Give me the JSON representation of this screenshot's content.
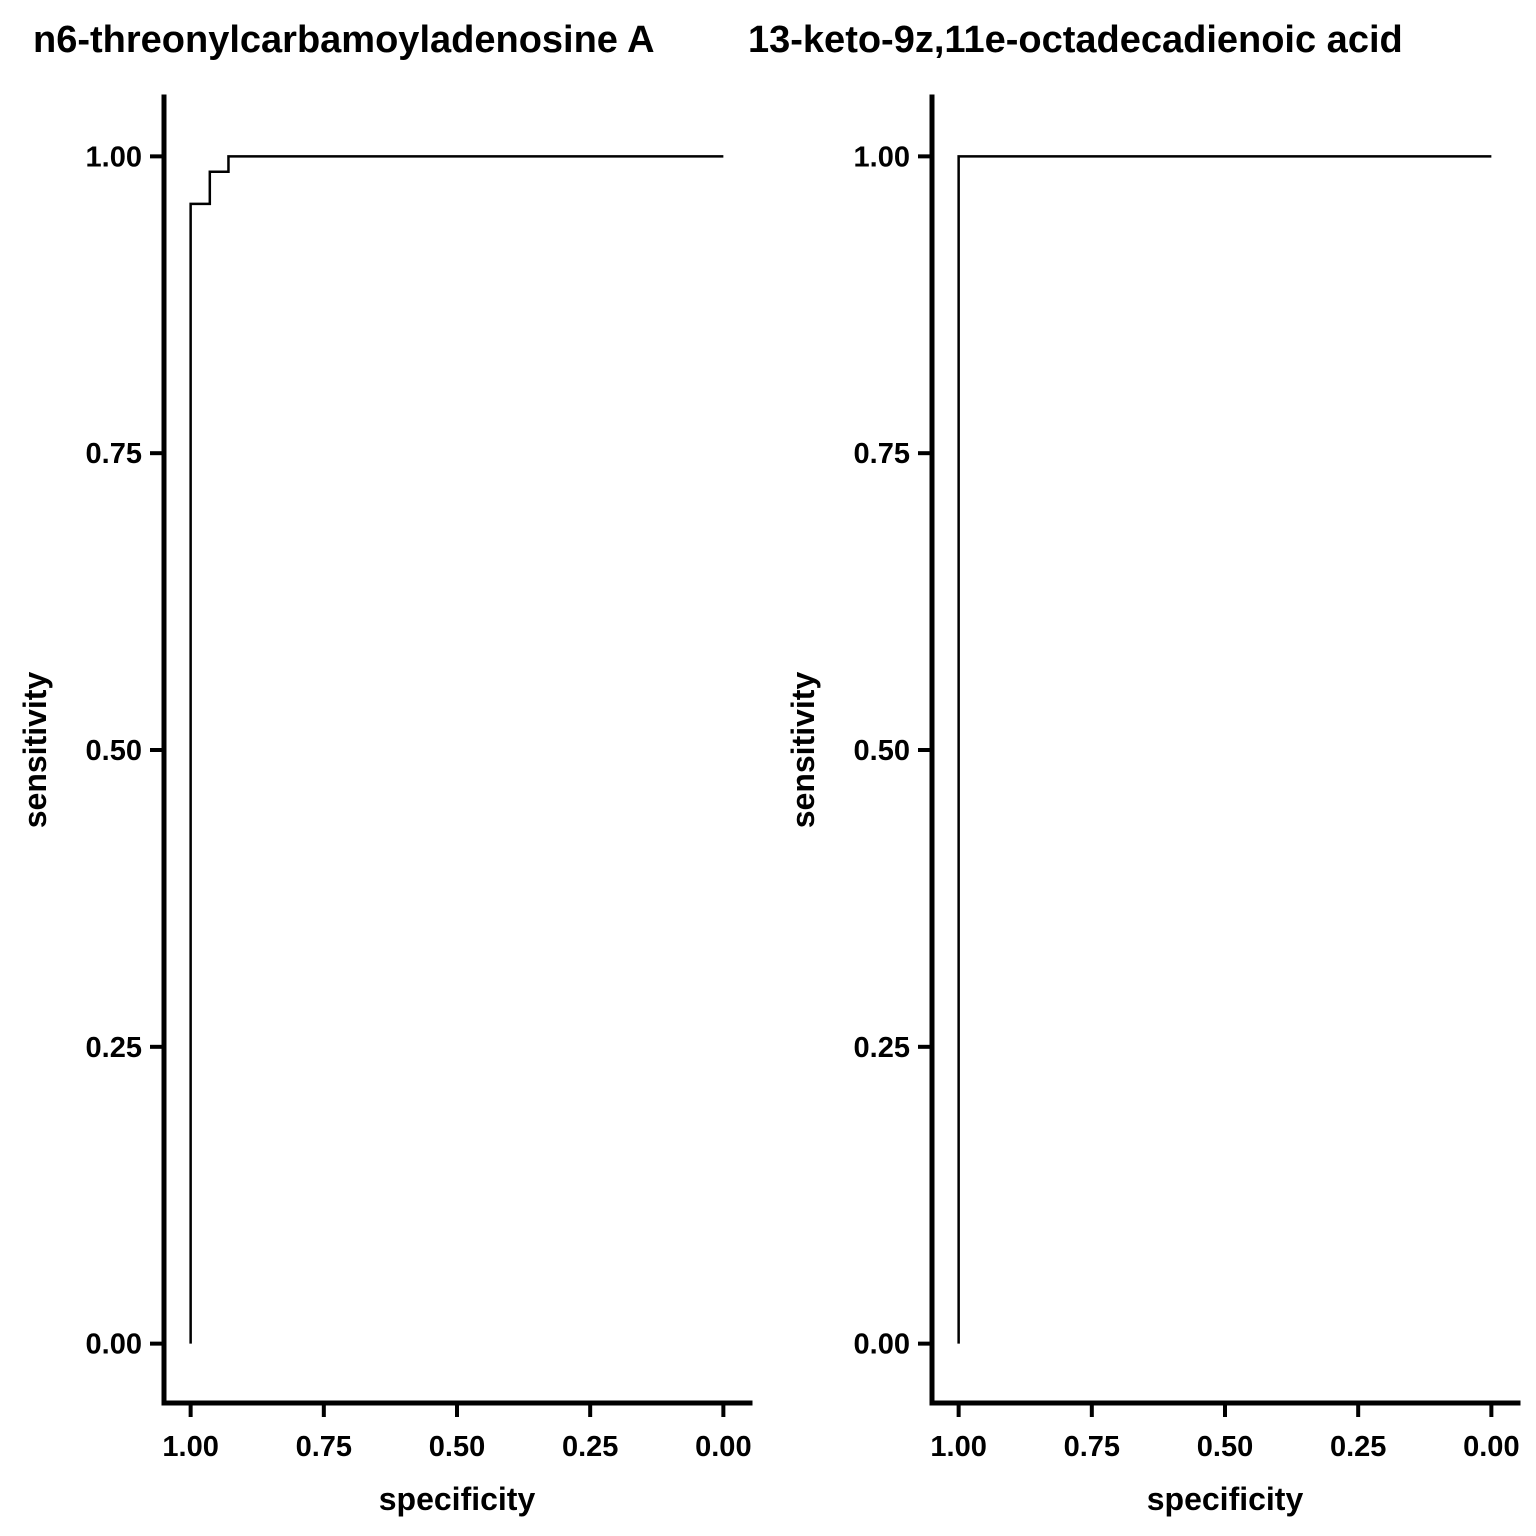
{
  "chart_data": [
    {
      "type": "line",
      "title": "n6-threonylcarbamoyladenosine A",
      "xlabel": "specificity",
      "ylabel": "sensitivity",
      "xlim": [
        1.05,
        -0.05
      ],
      "ylim": [
        -0.05,
        1.05
      ],
      "x_reversed": true,
      "xticks": [
        "1.00",
        "0.75",
        "0.50",
        "0.25",
        "0.00"
      ],
      "yticks": [
        "0.00",
        "0.25",
        "0.50",
        "0.75",
        "1.00"
      ],
      "grid": false,
      "line_color": "#000000",
      "series": [
        {
          "x": [
            1.0,
            1.0,
            0.964,
            0.964,
            0.929,
            0.929,
            0.0
          ],
          "y": [
            0.0,
            0.96,
            0.96,
            0.987,
            0.987,
            1.0,
            1.0
          ]
        }
      ]
    },
    {
      "type": "line",
      "title": "13-keto-9z,11e-octadecadienoic acid",
      "xlabel": "specificity",
      "ylabel": "sensitivity",
      "xlim": [
        1.05,
        -0.05
      ],
      "ylim": [
        -0.05,
        1.05
      ],
      "x_reversed": true,
      "xticks": [
        "1.00",
        "0.75",
        "0.50",
        "0.25",
        "0.00"
      ],
      "yticks": [
        "0.00",
        "0.25",
        "0.50",
        "0.75",
        "1.00"
      ],
      "grid": false,
      "line_color": "#000000",
      "series": [
        {
          "x": [
            1.0,
            1.0,
            0.0
          ],
          "y": [
            0.0,
            1.0,
            1.0
          ]
        }
      ]
    }
  ]
}
